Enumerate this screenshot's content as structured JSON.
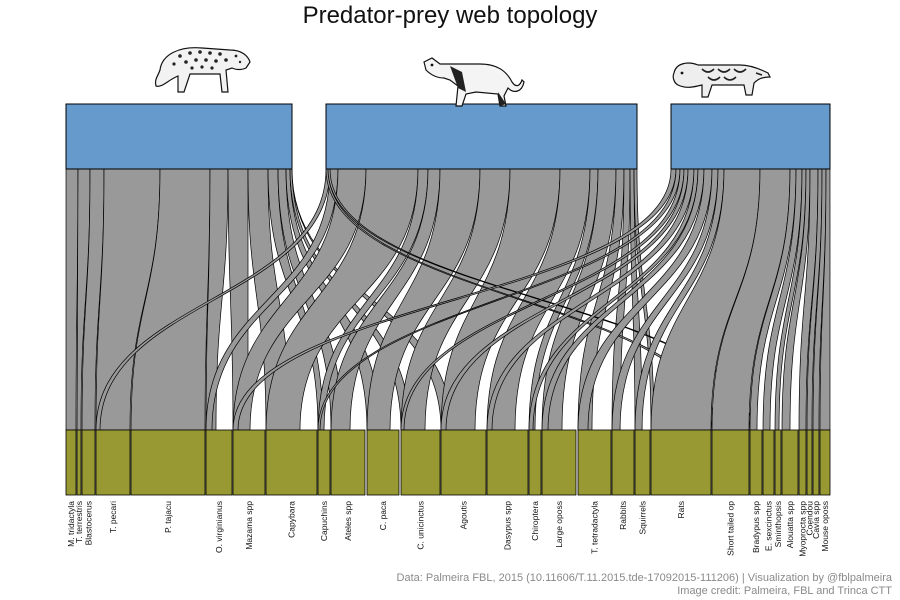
{
  "title": "Predator-prey web topology",
  "caption": {
    "line1": "Data: Palmeira FBL, 2015 (10.11606/T.11.2015.tde-17092015-111206) | Visualization by @fblpalmeira",
    "line2": "Image credit: Palmeira, FBL and Trinca CTT"
  },
  "colors": {
    "predator_box": "#6699cc",
    "prey_box": "#999933",
    "link": "#999999",
    "outline": "#000000"
  },
  "predators": [
    {
      "name": "jaguar",
      "icon": "jaguar-icon"
    },
    {
      "name": "puma",
      "icon": "puma-icon"
    },
    {
      "name": "ocelot",
      "icon": "ocelot-icon"
    }
  ],
  "prey": [
    "M. tridactyla",
    "T. terrestris",
    "Blastocerus",
    "T. pecari",
    "P. tajacu",
    "O. virginianus",
    "Mazama spp",
    "Capybara",
    "Capuchins",
    "Ateles spp",
    "C. paca",
    "C. unicinctus",
    "Agoutis",
    "Dasypus spp",
    "Chiroptera",
    "Large oposs",
    "T. tetradactyla",
    "Rabbits",
    "Squirrels",
    "Rats",
    "Short tailed op",
    "Bradypus spp",
    "E. sexcinctus",
    "Sminthopsis",
    "Alouatta spp",
    "Myoprocta spp",
    "Coendou",
    "Cavia spp",
    "Mouse oposs"
  ]
}
